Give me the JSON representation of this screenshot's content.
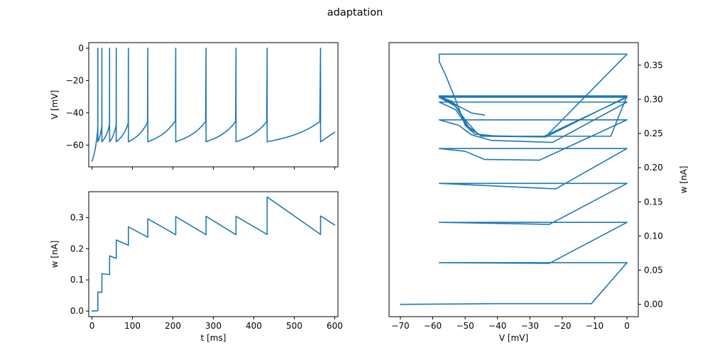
{
  "figure": {
    "title": "adaptation"
  },
  "chart_data": [
    {
      "type": "line",
      "panel": "top-left",
      "title": "",
      "xlabel": "",
      "ylabel": "V [mV]",
      "xlim": [
        -8,
        608
      ],
      "ylim": [
        -73.5,
        3.5
      ],
      "xticks": [
        0,
        100,
        200,
        300,
        400,
        500,
        600
      ],
      "xtick_labels_visible": false,
      "yticks": [
        -60,
        -40,
        -20,
        0
      ],
      "ytick_labels": [
        "−60",
        "−40",
        "−20",
        "0"
      ],
      "grid": false,
      "series": [
        {
          "style": "voltage-trace",
          "rest_mV": -70,
          "peak_mV": 0,
          "spikes": [
            {
              "t": 14.5,
              "reset": -58,
              "pre": -50
            },
            {
              "t": 24.5,
              "reset": -58,
              "pre": -48
            },
            {
              "t": 43.5,
              "reset": -58,
              "pre": -47.5
            },
            {
              "t": 60,
              "reset": -58,
              "pre": -47.5
            },
            {
              "t": 90,
              "reset": -58,
              "pre": -46.5
            },
            {
              "t": 138,
              "reset": -58,
              "pre": -46
            },
            {
              "t": 207,
              "reset": -58,
              "pre": -45
            },
            {
              "t": 282,
              "reset": -58,
              "pre": -45.5
            },
            {
              "t": 356,
              "reset": -58,
              "pre": -45.5
            },
            {
              "t": 433,
              "reset": -58,
              "pre": -45.5
            },
            {
              "t": 565,
              "reset": -58,
              "pre": -45.5
            }
          ],
          "end": {
            "t": 600,
            "v": -52
          }
        }
      ]
    },
    {
      "type": "line",
      "panel": "bottom-left",
      "title": "",
      "xlabel": "t [ms]",
      "ylabel": "w [nA]",
      "xlim": [
        -8,
        608
      ],
      "ylim": [
        -0.018,
        0.383
      ],
      "xticks": [
        0,
        100,
        200,
        300,
        400,
        500,
        600
      ],
      "xtick_labels": [
        "0",
        "100",
        "200",
        "300",
        "400",
        "500",
        "600"
      ],
      "yticks": [
        0.0,
        0.1,
        0.2,
        0.3
      ],
      "ytick_labels": [
        "0.0",
        "0.1",
        "0.2",
        "0.3"
      ],
      "grid": false,
      "series": [
        {
          "points": [
            [
              0,
              0.0
            ],
            [
              14.5,
              0.001
            ],
            [
              14.5,
              0.061
            ],
            [
              24.5,
              0.06
            ],
            [
              24.5,
              0.12
            ],
            [
              43.5,
              0.117
            ],
            [
              43.5,
              0.177
            ],
            [
              60,
              0.169
            ],
            [
              60,
              0.228
            ],
            [
              90,
              0.211
            ],
            [
              90,
              0.27
            ],
            [
              138,
              0.237
            ],
            [
              138,
              0.296
            ],
            [
              207,
              0.245
            ],
            [
              207,
              0.303
            ],
            [
              282,
              0.245
            ],
            [
              282,
              0.304
            ],
            [
              356,
              0.245
            ],
            [
              356,
              0.304
            ],
            [
              433,
              0.246
            ],
            [
              433,
              0.366
            ],
            [
              565,
              0.246
            ],
            [
              565,
              0.305
            ],
            [
              600,
              0.276
            ]
          ]
        }
      ]
    },
    {
      "type": "line",
      "panel": "right",
      "title": "",
      "xlabel": "V [mV]",
      "ylabel": "w [nA]",
      "ylabel_side": "right",
      "xlim": [
        -73.5,
        3.5
      ],
      "ylim": [
        -0.018,
        0.383
      ],
      "xticks": [
        -70,
        -60,
        -50,
        -40,
        -30,
        -20,
        -10,
        0
      ],
      "xtick_labels": [
        "−70",
        "−60",
        "−50",
        "−40",
        "−30",
        "−20",
        "−10",
        "0"
      ],
      "yticks": [
        0.0,
        0.05,
        0.1,
        0.15,
        0.2,
        0.25,
        0.3,
        0.35
      ],
      "ytick_labels": [
        "0.00",
        "0.05",
        "0.10",
        "0.15",
        "0.20",
        "0.25",
        "0.30",
        "0.35"
      ],
      "grid": false,
      "series": [
        {
          "points": [
            [
              -70,
              0.0
            ],
            [
              -40,
              0.001
            ],
            [
              -11,
              0.001
            ],
            [
              0,
              0.061
            ],
            [
              -58,
              0.061
            ],
            [
              -24,
              0.06
            ],
            [
              0,
              0.12
            ],
            [
              -58,
              0.12
            ],
            [
              -24,
              0.117
            ],
            [
              0,
              0.177
            ],
            [
              -58,
              0.177
            ],
            [
              -22,
              0.169
            ],
            [
              0,
              0.228
            ],
            [
              -58,
              0.228
            ],
            [
              -50,
              0.224
            ],
            [
              -44,
              0.212
            ],
            [
              -27,
              0.211
            ],
            [
              0,
              0.27
            ],
            [
              -58,
              0.27
            ],
            [
              -52,
              0.262
            ],
            [
              -48,
              0.248
            ],
            [
              -42,
              0.24
            ],
            [
              -23,
              0.237
            ],
            [
              0,
              0.296
            ],
            [
              -58,
              0.296
            ],
            [
              -53,
              0.285
            ],
            [
              -49,
              0.258
            ],
            [
              -45,
              0.247
            ],
            [
              -26,
              0.245
            ],
            [
              0,
              0.303
            ],
            [
              -58,
              0.303
            ],
            [
              -53,
              0.29
            ],
            [
              -49,
              0.26
            ],
            [
              -45,
              0.246
            ],
            [
              -25,
              0.245
            ],
            [
              0,
              0.304
            ],
            [
              -58,
              0.304
            ],
            [
              -53,
              0.291
            ],
            [
              -49,
              0.26
            ],
            [
              -45,
              0.246
            ],
            [
              -25,
              0.245
            ],
            [
              0,
              0.304
            ],
            [
              -58,
              0.304
            ],
            [
              -54,
              0.297
            ],
            [
              -50,
              0.27
            ],
            [
              -46,
              0.249
            ],
            [
              -40,
              0.246
            ],
            [
              -25,
              0.246
            ],
            [
              0,
              0.366
            ],
            [
              -58,
              0.366
            ],
            [
              -58,
              0.355
            ],
            [
              -56,
              0.335
            ],
            [
              -53,
              0.3
            ],
            [
              -50,
              0.262
            ],
            [
              -47,
              0.249
            ],
            [
              -40,
              0.246
            ],
            [
              -5,
              0.246
            ],
            [
              0,
              0.305
            ],
            [
              -58,
              0.305
            ],
            [
              -52,
              0.29
            ],
            [
              -48,
              0.28
            ],
            [
              -44,
              0.277
            ]
          ]
        }
      ]
    }
  ]
}
